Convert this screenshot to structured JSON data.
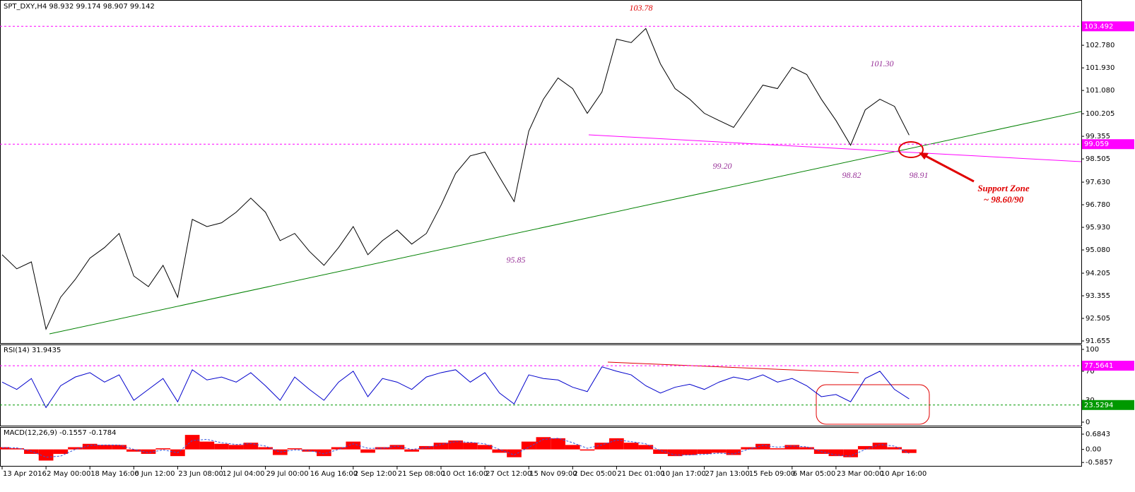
{
  "chart_data": [
    {
      "type": "line",
      "title": "SPT_DXY,H4  98.932 99.174 98.907 99.142",
      "color": "#000000",
      "values": [
        94.9,
        94.37,
        94.63,
        92.1,
        93.3,
        93.97,
        94.77,
        95.17,
        95.7,
        94.1,
        93.7,
        94.5,
        93.3,
        96.23,
        95.96,
        96.1,
        96.5,
        97.03,
        96.5,
        95.43,
        95.7,
        95.03,
        94.5,
        95.17,
        95.96,
        94.9,
        95.43,
        95.83,
        95.3,
        95.7,
        96.76,
        97.96,
        98.62,
        98.76,
        97.82,
        96.9,
        99.55,
        100.75,
        101.55,
        101.15,
        100.22,
        101.02,
        103.01,
        102.88,
        103.41,
        102.08,
        101.15,
        100.75,
        100.22,
        99.95,
        99.69,
        100.48,
        101.28,
        101.15,
        101.95,
        101.68,
        100.75,
        99.95,
        99.02,
        100.35,
        100.75,
        100.48,
        99.4
      ],
      "ylim": [
        91.55,
        104.35
      ],
      "yticks": [
        91.655,
        92.505,
        93.355,
        94.205,
        {
          "value": 95.08,
          "label": "95.080"
        },
        {
          "value": 95.93,
          "label": "95.930"
        },
        {
          "value": 96.78,
          "label": "96.780"
        },
        {
          "value": 97.63,
          "label": "97.630"
        },
        98.505,
        99.355,
        100.205,
        {
          "value": 101.08,
          "label": "101.080"
        },
        {
          "value": 101.93,
          "label": "101.930"
        },
        {
          "value": 102.78,
          "label": "102.780"
        }
      ],
      "levels": [
        {
          "value": 103.492,
          "color": "#ff00ff"
        },
        {
          "value": 99.059,
          "color": "#ff00ff"
        }
      ],
      "annotations": [
        "103.78",
        "101.30",
        "99.20",
        "98.82",
        "98.91",
        "95.85",
        "Support Zone",
        "~ 98.60/90"
      ]
    },
    {
      "type": "line",
      "title": "RSI(14) 31.9435",
      "color": "#0000cc",
      "values": [
        55,
        45,
        60,
        20,
        50,
        62,
        68,
        55,
        65,
        30,
        45,
        60,
        28,
        72,
        58,
        62,
        55,
        68,
        50,
        30,
        62,
        45,
        30,
        55,
        70,
        35,
        60,
        55,
        45,
        62,
        68,
        72,
        55,
        68,
        40,
        25,
        65,
        60,
        58,
        48,
        42,
        76,
        70,
        65,
        50,
        40,
        48,
        52,
        45,
        55,
        62,
        58,
        65,
        55,
        60,
        50,
        35,
        38,
        28,
        60,
        70,
        45,
        32
      ],
      "ylim": [
        -5.8,
        105.8
      ],
      "yticks": [
        0,
        30,
        70,
        100
      ],
      "levels": [
        {
          "value": 77.5641,
          "color": "#ff00ff"
        },
        {
          "value": 23.5294,
          "color": "#009900"
        }
      ]
    },
    {
      "type": "bar",
      "title": "MACD(12,26,9) -0.1557 -0.1784",
      "color": "#ff0000",
      "signal_color": "#3355dd",
      "values": [
        0.1,
        0.05,
        -0.2,
        -0.5,
        -0.2,
        0.1,
        0.25,
        0.2,
        0.2,
        -0.1,
        -0.2,
        0.05,
        -0.3,
        0.65,
        0.35,
        0.25,
        0.2,
        0.3,
        0.1,
        -0.25,
        0.05,
        -0.1,
        -0.3,
        0.1,
        0.35,
        -0.15,
        0.1,
        0.2,
        -0.1,
        0.15,
        0.3,
        0.4,
        0.3,
        0.2,
        -0.15,
        -0.35,
        0.35,
        0.55,
        0.5,
        0.2,
        -0.05,
        0.3,
        0.5,
        0.3,
        0.2,
        -0.2,
        -0.3,
        -0.25,
        -0.2,
        -0.15,
        -0.25,
        0.1,
        0.25,
        0.05,
        0.2,
        0.1,
        -0.2,
        -0.3,
        -0.35,
        0.15,
        0.3,
        0.1,
        -0.16
      ],
      "signal": [
        0.08,
        0.07,
        -0.08,
        -0.35,
        -0.3,
        0.0,
        0.18,
        0.2,
        0.2,
        0.0,
        -0.15,
        -0.02,
        -0.15,
        0.4,
        0.45,
        0.3,
        0.22,
        0.26,
        0.15,
        -0.12,
        -0.02,
        -0.05,
        -0.2,
        0.0,
        0.25,
        0.05,
        0.05,
        0.15,
        0.0,
        0.08,
        0.22,
        0.35,
        0.32,
        0.25,
        0.0,
        -0.25,
        0.1,
        0.45,
        0.5,
        0.3,
        0.05,
        0.2,
        0.42,
        0.35,
        0.25,
        -0.05,
        -0.25,
        -0.25,
        -0.22,
        -0.17,
        -0.2,
        0.0,
        0.18,
        0.1,
        0.15,
        0.12,
        -0.1,
        -0.25,
        -0.3,
        0.0,
        0.22,
        0.15,
        -0.18
      ],
      "ylim": [
        -0.77,
        0.97
      ],
      "yticks": [
        0.6843,
        {
          "value": 0,
          "label": "0.00"
        },
        -0.5857
      ],
      "categories": [
        "13 Apr 2016",
        null,
        null,
        "2 May 00:00",
        null,
        null,
        "18 May 16:00",
        null,
        null,
        "6 Jun 12:00",
        null,
        null,
        "23 Jun 08:00",
        null,
        null,
        "12 Jul 04:00",
        null,
        null,
        "29 Jul 00:00",
        null,
        null,
        "16 Aug 16:00",
        null,
        null,
        "2 Sep 12:00",
        null,
        null,
        "21 Sep 08:00",
        null,
        null,
        "10 Oct 16:00",
        null,
        null,
        "27 Oct 12:00",
        null,
        null,
        "15 Nov 09:00",
        null,
        null,
        "2 Dec 05:00",
        null,
        null,
        "21 Dec 01:00",
        null,
        null,
        "10 Jan 17:00",
        null,
        null,
        "27 Jan 13:00",
        null,
        null,
        "15 Feb 09:00",
        null,
        null,
        "6 Mar 05:00",
        null,
        null,
        "23 Mar 00:00",
        null,
        null,
        "10 Apr 16:00",
        null,
        null
      ]
    }
  ]
}
